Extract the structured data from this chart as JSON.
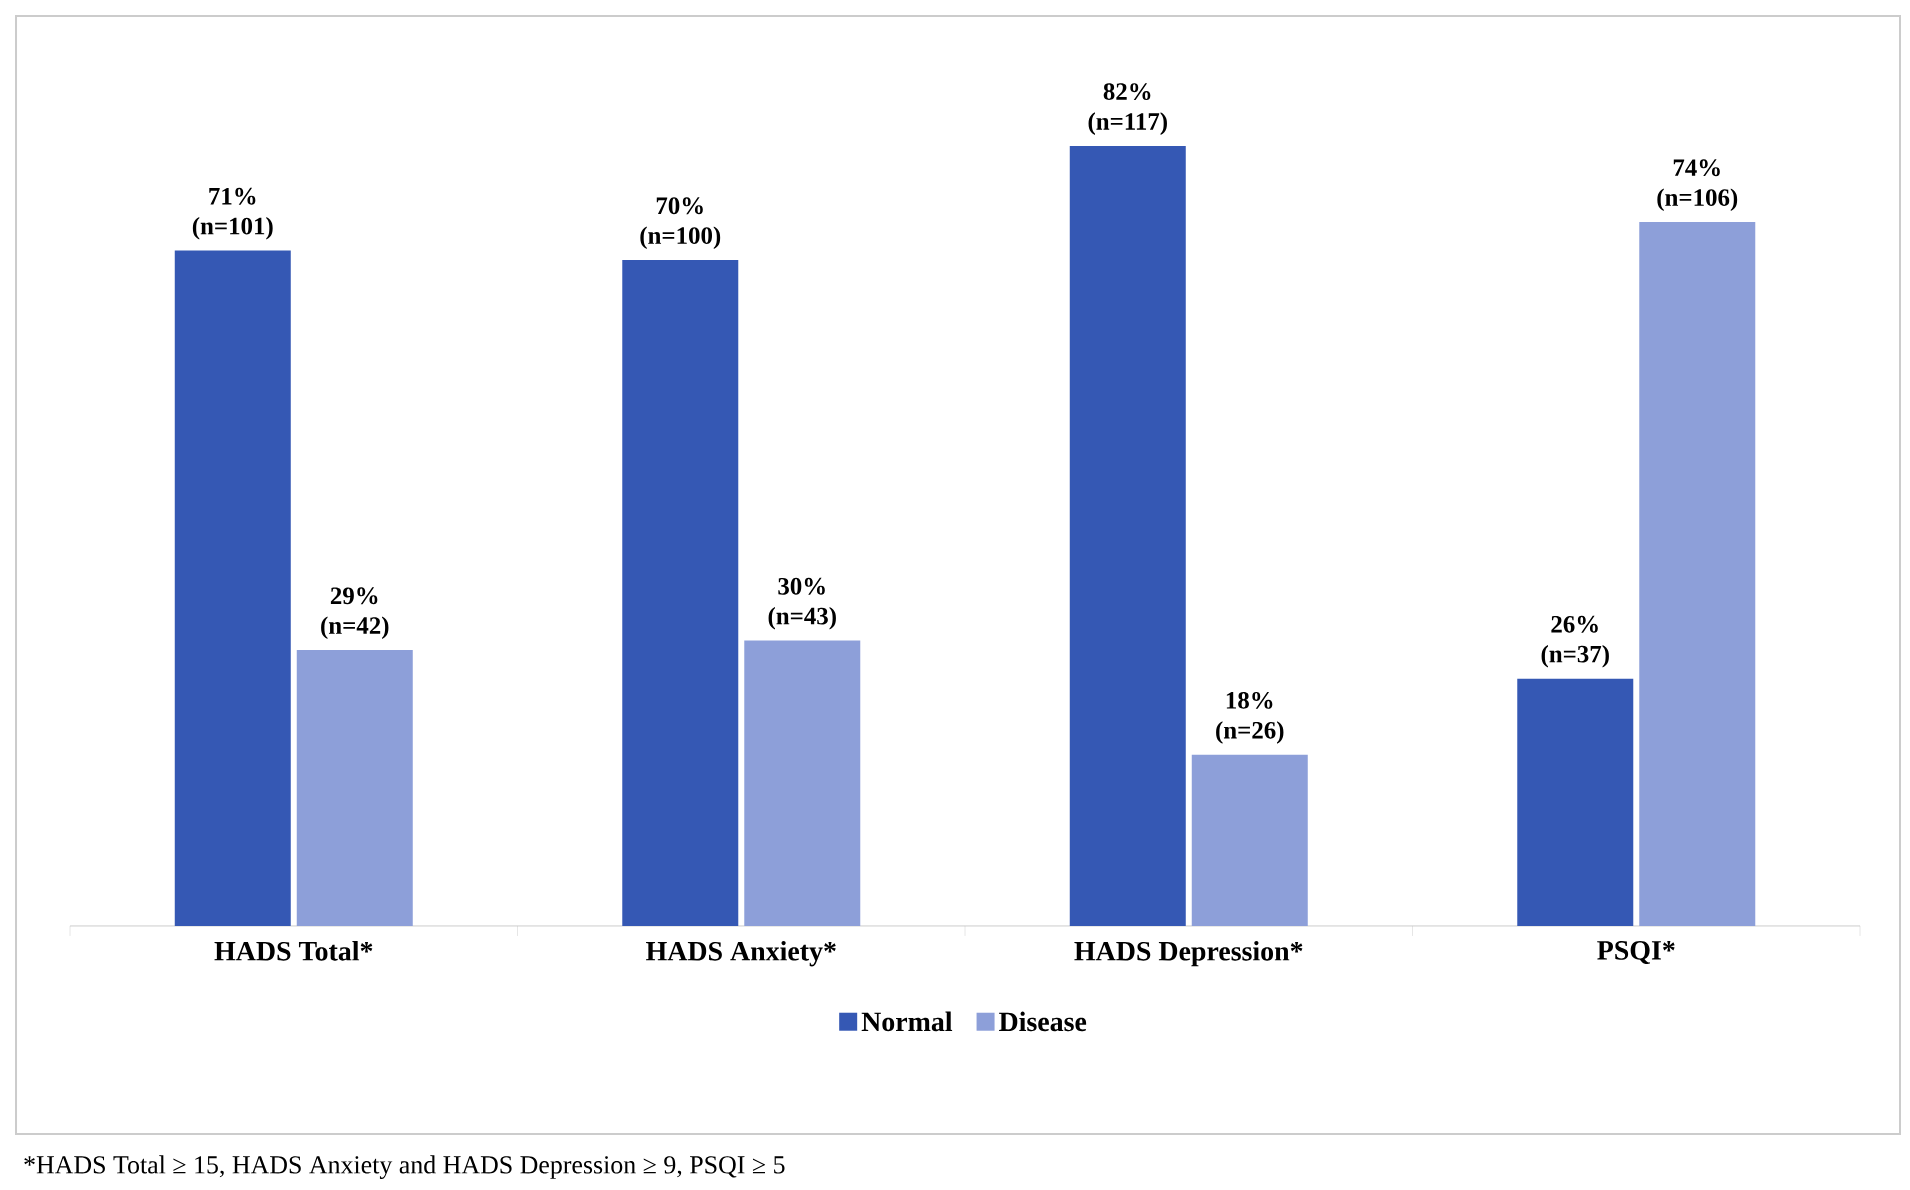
{
  "chart_data": {
    "type": "bar",
    "categories": [
      "HADS Total*",
      "HADS Anxiety*",
      "HADS Depression*",
      "PSQI*"
    ],
    "series": [
      {
        "name": "Normal",
        "color": "#3558b4",
        "values": [
          71,
          70,
          82,
          26
        ],
        "value_labels": [
          "71% (n=101)",
          "70% (n=100)",
          "82% (n=117)",
          "26% (n=37)"
        ]
      },
      {
        "name": "Disease",
        "color": "#8d9fd9",
        "values": [
          29,
          30,
          18,
          74
        ],
        "value_labels": [
          "29% (n=42)",
          "30% (n=43)",
          "18% (n=26)",
          "74% (n=106)"
        ]
      }
    ],
    "legend": "bottom",
    "annotations": [
      "*HADS Total  ≥ 15, HADS Anxiety and HADS Depression  ≥ 9, PSQI ≥ 5"
    ]
  }
}
